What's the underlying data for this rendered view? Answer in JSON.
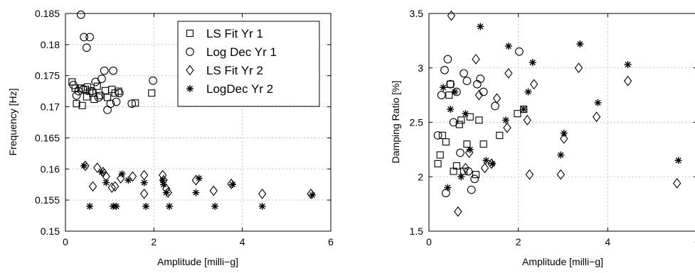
{
  "chart_data": [
    {
      "type": "scatter",
      "xlabel": "Amplitude [milli−g]",
      "ylabel": "Frequency [Hz]",
      "xlim": [
        0,
        6
      ],
      "ylim": [
        0.15,
        0.185
      ],
      "xticks": [
        0,
        2,
        4,
        6
      ],
      "yticks": [
        0.15,
        0.155,
        0.16,
        0.165,
        0.17,
        0.175,
        0.18,
        0.185
      ],
      "xtick_labels": [
        "0",
        "2",
        "4",
        "6"
      ],
      "ytick_labels": [
        "0.15",
        "0.155",
        "0.16",
        "0.165",
        "0.17",
        "0.175",
        "0.18",
        "0.185"
      ],
      "grid": true,
      "legend": {
        "position": "top-right"
      },
      "series": [
        {
          "name": "LS Fit Yr 1",
          "marker": "square",
          "x": [
            0.15,
            0.22,
            0.25,
            0.35,
            0.38,
            0.45,
            0.48,
            0.5,
            0.55,
            0.62,
            0.65,
            0.72,
            0.78,
            0.9,
            0.95,
            1.05,
            1.12,
            1.2,
            1.58,
            1.95
          ],
          "y": [
            0.174,
            0.173,
            0.1705,
            0.173,
            0.1702,
            0.1728,
            0.1716,
            0.1732,
            0.1725,
            0.1722,
            0.1712,
            0.1733,
            0.1718,
            0.1726,
            0.1715,
            0.1728,
            0.1722,
            0.1725,
            0.1706,
            0.1722
          ]
        },
        {
          "name": "Log Dec Yr 1",
          "marker": "circle",
          "x": [
            0.35,
            0.42,
            0.48,
            0.55,
            0.18,
            0.25,
            0.3,
            0.6,
            0.68,
            0.75,
            0.82,
            0.88,
            0.95,
            1.02,
            1.08,
            1.15,
            1.22,
            1.5,
            1.98,
            0.4
          ],
          "y": [
            0.1848,
            0.1812,
            0.1795,
            0.1812,
            0.1735,
            0.1718,
            0.1725,
            0.1725,
            0.174,
            0.1715,
            0.1745,
            0.1758,
            0.1695,
            0.1705,
            0.1758,
            0.1708,
            0.1722,
            0.1705,
            0.1742,
            0.1728
          ]
        },
        {
          "name": "LS Fit Yr 2",
          "marker": "diamond",
          "x": [
            0.45,
            0.62,
            0.72,
            0.85,
            0.92,
            1.05,
            1.12,
            1.25,
            1.52,
            1.78,
            1.78,
            2.2,
            2.22,
            2.28,
            2.32,
            2.95,
            3.35,
            3.75,
            4.45,
            5.55
          ],
          "y": [
            0.1605,
            0.1572,
            0.1602,
            0.1595,
            0.1588,
            0.157,
            0.1572,
            0.1585,
            0.1588,
            0.159,
            0.156,
            0.159,
            0.1582,
            0.1568,
            0.1562,
            0.1582,
            0.1565,
            0.1576,
            0.156,
            0.156
          ]
        },
        {
          "name": "LogDec Yr 2",
          "marker": "star",
          "x": [
            0.42,
            0.55,
            0.82,
            0.92,
            1.08,
            1.15,
            1.28,
            1.42,
            1.78,
            1.82,
            2.2,
            2.22,
            2.28,
            2.35,
            2.95,
            3.02,
            3.38,
            3.78,
            4.45,
            5.58
          ],
          "y": [
            0.1605,
            0.154,
            0.1595,
            0.1578,
            0.154,
            0.154,
            0.1592,
            0.1582,
            0.1578,
            0.154,
            0.1582,
            0.1575,
            0.1562,
            0.154,
            0.1562,
            0.1585,
            0.154,
            0.1575,
            0.154,
            0.1558
          ]
        }
      ]
    },
    {
      "type": "scatter",
      "xlabel": "Amplitude [milli−g]",
      "ylabel": "Damping Ratio [%]",
      "xlim": [
        0,
        6
      ],
      "ylim": [
        1.5,
        3.5
      ],
      "xticks": [
        0,
        2,
        4,
        6
      ],
      "yticks": [
        1.5,
        2,
        2.5,
        3,
        3.5
      ],
      "xtick_labels": [
        "0",
        "2",
        "4",
        "6"
      ],
      "ytick_labels": [
        "1.5",
        "2",
        "2.5",
        "3",
        "3.5"
      ],
      "grid": true,
      "series": [
        {
          "name": "LS Fit Yr 1",
          "marker": "square",
          "x": [
            0.2,
            0.25,
            0.3,
            0.38,
            0.45,
            0.48,
            0.55,
            0.62,
            0.68,
            0.72,
            0.78,
            0.85,
            0.92,
            1.05,
            1.12,
            1.22,
            1.58,
            1.98,
            2.12
          ],
          "y": [
            2.12,
            2.2,
            2.38,
            2.32,
            2.75,
            2.85,
            2.05,
            2.1,
            2.48,
            2.52,
            2.05,
            2.3,
            2.55,
            2.02,
            2.52,
            2.3,
            2.38,
            2.58,
            2.62
          ]
        },
        {
          "name": "Log Dec Yr 1",
          "marker": "circle",
          "x": [
            0.2,
            0.28,
            0.35,
            0.42,
            0.48,
            0.55,
            0.62,
            0.7,
            0.78,
            0.85,
            0.95,
            1.02,
            1.08,
            1.15,
            1.22,
            1.48,
            2.02,
            0.38,
            0.88
          ],
          "y": [
            2.38,
            2.75,
            2.98,
            3.08,
            2.85,
            2.5,
            2.78,
            2.22,
            2.95,
            2.88,
            1.88,
            1.98,
            2.85,
            2.9,
            2.78,
            2.65,
            3.15,
            1.85,
            2.05
          ]
        },
        {
          "name": "LS Fit Yr 2",
          "marker": "diamond",
          "x": [
            0.5,
            0.65,
            0.82,
            0.9,
            1.05,
            1.12,
            1.25,
            1.4,
            1.52,
            1.75,
            1.78,
            2.2,
            2.25,
            2.35,
            2.95,
            3.02,
            3.35,
            3.75,
            4.45,
            5.55
          ],
          "y": [
            3.48,
            1.68,
            2.08,
            2.22,
            3.08,
            2.75,
            2.08,
            2.12,
            2.72,
            2.45,
            2.95,
            2.52,
            2.02,
            2.85,
            2.02,
            2.35,
            3.0,
            2.55,
            2.88,
            1.94
          ]
        },
        {
          "name": "LogDec Yr 2",
          "marker": "star",
          "x": [
            0.32,
            0.42,
            0.48,
            0.58,
            0.72,
            0.82,
            0.92,
            1.15,
            1.28,
            1.42,
            1.72,
            1.78,
            2.12,
            2.22,
            2.32,
            2.95,
            3.02,
            3.38,
            3.78,
            4.45,
            5.58
          ],
          "y": [
            2.82,
            1.9,
            2.62,
            2.78,
            2.0,
            2.58,
            2.25,
            3.38,
            2.15,
            2.12,
            2.52,
            3.2,
            2.62,
            2.78,
            3.05,
            2.2,
            2.4,
            3.22,
            2.68,
            3.03,
            2.15
          ]
        }
      ]
    }
  ]
}
